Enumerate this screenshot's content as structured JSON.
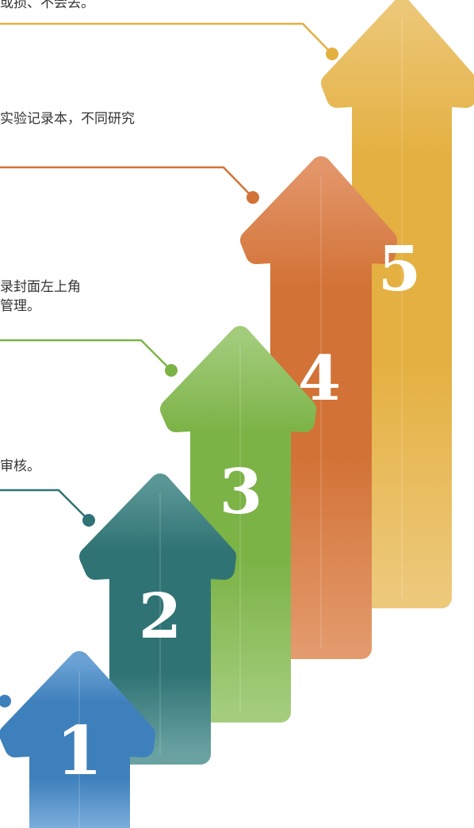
{
  "steps": [
    {
      "number": "1",
      "color": "#3e80bb",
      "light": "#6aa2d4",
      "caption": ""
    },
    {
      "number": "2",
      "color": "#2f7374",
      "light": "#5e9a9a",
      "caption": "审核。"
    },
    {
      "number": "3",
      "color": "#7cb347",
      "light": "#a3cd7c",
      "caption": "录封面左上角\n管理。"
    },
    {
      "number": "4",
      "color": "#d27236",
      "light": "#e39a6c",
      "caption": "实验记录本，不同研究"
    },
    {
      "number": "5",
      "color": "#e3b040",
      "light": "#edc979",
      "caption": "或损、不会丢。"
    }
  ]
}
